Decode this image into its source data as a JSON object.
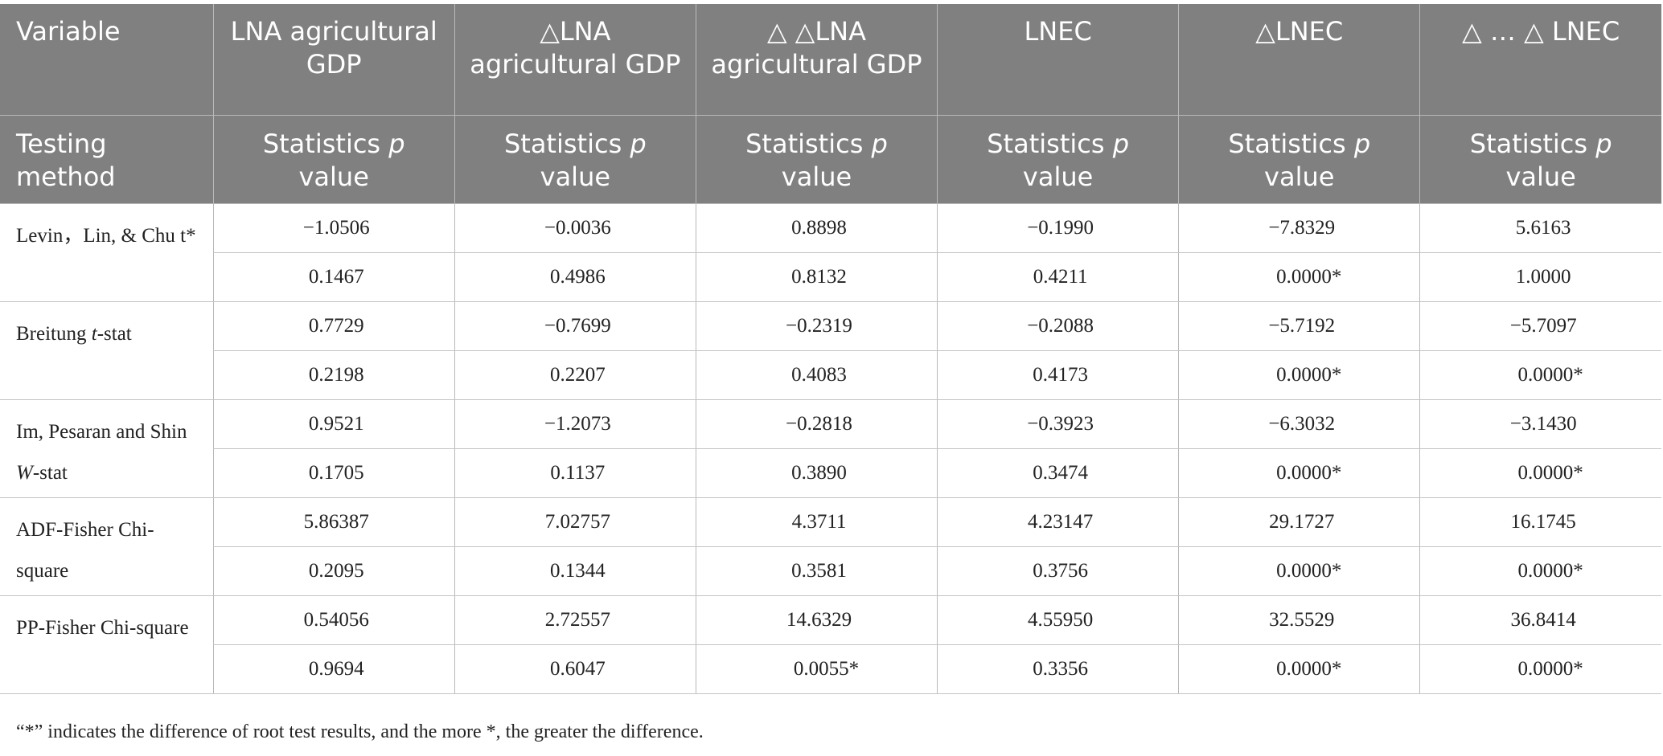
{
  "header": {
    "row1": [
      "Variable",
      "LNA agricultural GDP",
      "△LNA agricultural GDP",
      "△ △LNA agricultural GDP",
      "LNEC",
      "△LNEC",
      "△ … △ LNEC"
    ],
    "row2_label": "Testing method",
    "row2_cell_text": "Statistics",
    "row2_cell_p": "p",
    "row2_cell_value": "value"
  },
  "rows": [
    {
      "method": "Levin，Lin, & Chu t*",
      "statistics": [
        "−1.0506",
        "−0.0036",
        "0.8898",
        "−0.1990",
        "−7.8329",
        "5.6163"
      ],
      "p_values": [
        "0.1467",
        "0.4986",
        "0.8132",
        "0.4211",
        "0.0000*",
        "1.0000"
      ]
    },
    {
      "method_prefix": "Breitung ",
      "method_italic": "t",
      "method_suffix": "-stat",
      "statistics": [
        "0.7729",
        "−0.7699",
        "−0.2319",
        "−0.2088",
        "−5.7192",
        "−5.7097"
      ],
      "p_values": [
        "0.2198",
        "0.2207",
        "0.4083",
        "0.4173",
        "0.0000*",
        "0.0000*"
      ]
    },
    {
      "method_prefix": "Im, Pesaran and Shin ",
      "method_italic": "W",
      "method_suffix": "-stat",
      "statistics": [
        "0.9521",
        "−1.2073",
        "−0.2818",
        "−0.3923",
        "−6.3032",
        "−3.1430"
      ],
      "p_values": [
        "0.1705",
        "0.1137",
        "0.3890",
        "0.3474",
        "0.0000*",
        "0.0000*"
      ]
    },
    {
      "method": "ADF-Fisher Chi-square",
      "statistics": [
        "5.86387",
        "7.02757",
        "4.3711",
        "4.23147",
        "29.1727",
        "16.1745"
      ],
      "p_values": [
        "0.2095",
        "0.1344",
        "0.3581",
        "0.3756",
        "0.0000*",
        "0.0000*"
      ]
    },
    {
      "method": "PP-Fisher Chi-square",
      "statistics": [
        "0.54056",
        "2.72557",
        "14.6329",
        "4.55950",
        "32.5529",
        "36.8414"
      ],
      "p_values": [
        "0.9694",
        "0.6047",
        "0.0055*",
        "0.3356",
        "0.0000*",
        "0.0000*"
      ]
    }
  ],
  "footnote": "“*” indicates the difference of root test results, and the more *, the greater the difference.",
  "colors": {
    "header_bg": "#808080",
    "header_text": "#ffffff",
    "grid": "#b9b9b9"
  }
}
